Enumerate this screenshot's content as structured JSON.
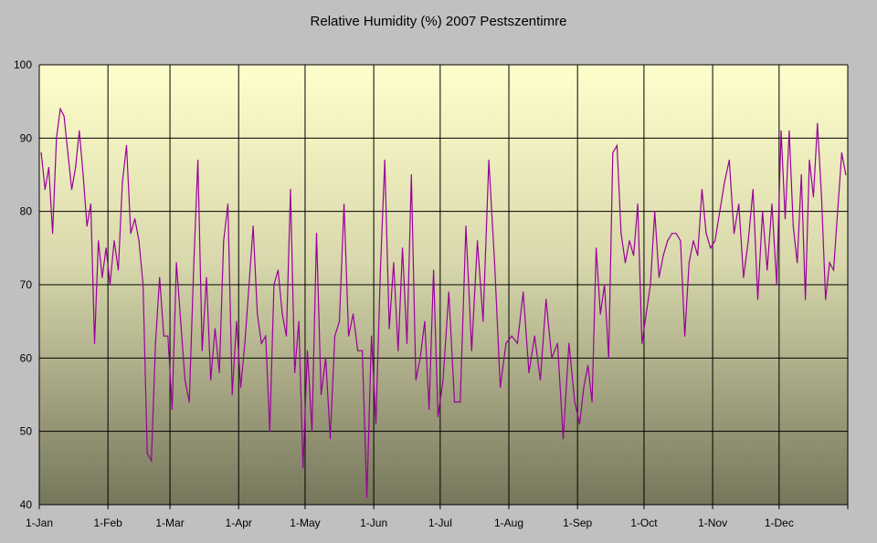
{
  "chart_data": {
    "type": "line",
    "title": "Relative Humidity (%) 2007 Pestszentimre",
    "xlabel": "",
    "ylabel": "",
    "ylim": [
      40,
      100
    ],
    "yticks": [
      "40",
      "50",
      "60",
      "70",
      "80",
      "90",
      "100"
    ],
    "xlim_days": [
      0,
      365
    ],
    "xticks": [
      {
        "label": "1-Jan",
        "day": 0
      },
      {
        "label": "1-Feb",
        "day": 31
      },
      {
        "label": "1-Mar",
        "day": 59
      },
      {
        "label": "1-Apr",
        "day": 90
      },
      {
        "label": "1-May",
        "day": 120
      },
      {
        "label": "1-Jun",
        "day": 151
      },
      {
        "label": "1-Jul",
        "day": 181
      },
      {
        "label": "1-Aug",
        "day": 212
      },
      {
        "label": "1-Sep",
        "day": 243
      },
      {
        "label": "1-Oct",
        "day": 273
      },
      {
        "label": "1-Nov",
        "day": 304
      },
      {
        "label": "1-Dec",
        "day": 334
      }
    ],
    "grid": true,
    "legend": "none",
    "series": [
      {
        "name": "Relative Humidity (%)",
        "color": "#990099",
        "monthly_values": [
          {
            "start_day": 0,
            "end_day": 31,
            "values": [
              88,
              83,
              86,
              77,
              90,
              94,
              93,
              88,
              83,
              86,
              91,
              85,
              78,
              81,
              62,
              76,
              71,
              75
            ]
          },
          {
            "start_day": 31,
            "end_day": 59,
            "values": [
              70,
              76,
              72,
              84,
              89,
              77,
              79,
              76,
              70,
              47,
              46,
              62,
              71,
              63,
              63
            ]
          },
          {
            "start_day": 59,
            "end_day": 90,
            "values": [
              53,
              73,
              65,
              57,
              54,
              72,
              87,
              61,
              71,
              57,
              64,
              58,
              76,
              81,
              55,
              65
            ]
          },
          {
            "start_day": 90,
            "end_day": 120,
            "values": [
              56,
              62,
              70,
              78,
              66,
              62,
              63,
              50,
              70,
              72,
              66,
              63,
              83,
              58,
              65,
              45
            ]
          },
          {
            "start_day": 120,
            "end_day": 151,
            "values": [
              61,
              50,
              77,
              55,
              60,
              49,
              63,
              65,
              81,
              63,
              66,
              61,
              61,
              41,
              63
            ]
          },
          {
            "start_day": 151,
            "end_day": 181,
            "values": [
              51,
              72,
              87,
              64,
              73,
              61,
              75,
              62,
              85,
              57,
              60,
              65,
              53,
              72,
              52
            ]
          },
          {
            "start_day": 181,
            "end_day": 212,
            "values": [
              57,
              69,
              54,
              54,
              78,
              61,
              76,
              65,
              87,
              73,
              56,
              62
            ]
          },
          {
            "start_day": 212,
            "end_day": 243,
            "values": [
              63,
              62,
              69,
              58,
              63,
              57,
              68,
              60,
              62,
              49,
              62,
              54
            ]
          },
          {
            "start_day": 243,
            "end_day": 273,
            "values": [
              51,
              56,
              59,
              54,
              75,
              66,
              70,
              60,
              88,
              89,
              77,
              73,
              76,
              74,
              81,
              62
            ]
          },
          {
            "start_day": 273,
            "end_day": 304,
            "values": [
              66,
              70,
              80,
              71,
              74,
              76,
              77,
              77,
              76,
              63,
              73,
              76,
              74,
              83,
              77,
              75
            ]
          },
          {
            "start_day": 304,
            "end_day": 334,
            "values": [
              76,
              80,
              84,
              87,
              77,
              81,
              71,
              76,
              83,
              68,
              80,
              72,
              81,
              70
            ]
          },
          {
            "start_day": 334,
            "end_day": 365,
            "values": [
              91,
              79,
              91,
              78,
              73,
              85,
              68,
              87,
              82,
              92,
              82,
              68,
              73,
              72,
              80,
              88,
              85
            ]
          }
        ]
      }
    ]
  }
}
